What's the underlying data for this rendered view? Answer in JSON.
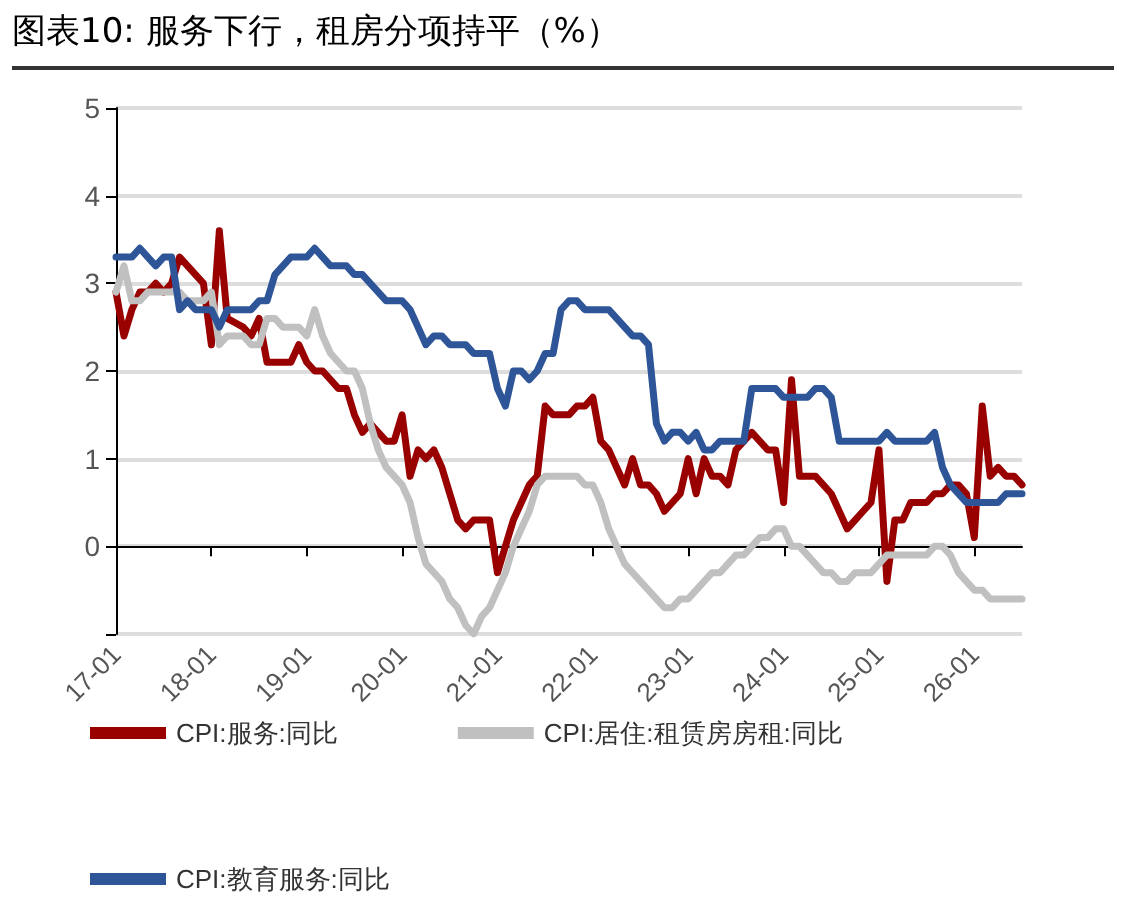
{
  "chart_data": {
    "type": "line",
    "title": "图表10: 服务下行，租房分项持平（%）",
    "categories": [
      "17-01",
      null,
      null,
      null,
      null,
      null,
      null,
      null,
      null,
      null,
      null,
      null,
      "18-01",
      null,
      null,
      null,
      null,
      null,
      null,
      null,
      null,
      null,
      null,
      null,
      "19-01",
      null,
      null,
      null,
      null,
      null,
      null,
      null,
      null,
      null,
      null,
      null,
      "20-01",
      null,
      null,
      null,
      null,
      null,
      null,
      null,
      null,
      null,
      null,
      null,
      "21-01",
      null,
      null,
      null,
      null,
      null,
      null,
      null,
      null,
      null,
      null,
      null,
      "22-01",
      null,
      null,
      null,
      null,
      null,
      null,
      null,
      null,
      null,
      null,
      null,
      "23-01",
      null,
      null,
      null,
      null,
      null,
      null,
      null,
      null,
      null,
      null,
      null,
      "24-01",
      null,
      null,
      null,
      null,
      null,
      null,
      null,
      null,
      null,
      null,
      null,
      "25-01",
      null,
      null,
      null,
      null,
      null,
      null,
      null,
      null,
      null,
      null,
      null,
      "26-01",
      null,
      null,
      null,
      null,
      null,
      null
    ],
    "series": [
      {
        "name": "CPI:服务:同比",
        "color": "#990000",
        "values": [
          2.9,
          2.4,
          2.7,
          2.9,
          2.9,
          3.0,
          2.9,
          3.0,
          3.3,
          3.2,
          3.1,
          3.0,
          2.3,
          3.6,
          2.6,
          2.55,
          2.5,
          2.4,
          2.6,
          2.1,
          2.1,
          2.1,
          2.1,
          2.3,
          2.1,
          2.0,
          2.0,
          1.9,
          1.8,
          1.8,
          1.5,
          1.3,
          1.4,
          1.3,
          1.2,
          1.2,
          1.5,
          0.8,
          1.1,
          1.0,
          1.1,
          0.9,
          0.6,
          0.3,
          0.2,
          0.3,
          0.3,
          0.3,
          -0.3,
          0.0,
          0.3,
          0.5,
          0.7,
          0.8,
          1.6,
          1.5,
          1.5,
          1.5,
          1.6,
          1.6,
          1.7,
          1.2,
          1.1,
          0.9,
          0.7,
          1.0,
          0.7,
          0.7,
          0.6,
          0.4,
          0.5,
          0.6,
          1.0,
          0.6,
          1.0,
          0.8,
          0.8,
          0.7,
          1.1,
          1.2,
          1.3,
          1.2,
          1.1,
          1.1,
          0.5,
          1.9,
          0.8,
          0.8,
          0.8,
          0.7,
          0.6,
          0.4,
          0.2,
          0.3,
          0.4,
          0.5,
          1.1,
          -0.4,
          0.3,
          0.3,
          0.5,
          0.5,
          0.5,
          0.6,
          0.6,
          0.7,
          0.7,
          0.6,
          0.1,
          1.6,
          0.8,
          0.9,
          0.8,
          0.8,
          0.7
        ]
      },
      {
        "name": "CPI:居住:租赁房房租:同比",
        "color": "#c0c0c0",
        "values": [
          2.9,
          3.2,
          2.8,
          2.8,
          2.9,
          2.9,
          2.9,
          2.9,
          2.9,
          2.8,
          2.8,
          2.8,
          2.9,
          2.3,
          2.4,
          2.4,
          2.4,
          2.3,
          2.3,
          2.6,
          2.6,
          2.5,
          2.5,
          2.5,
          2.4,
          2.7,
          2.4,
          2.2,
          2.1,
          2.0,
          2.0,
          1.8,
          1.4,
          1.1,
          0.9,
          0.8,
          0.7,
          0.5,
          0.1,
          -0.2,
          -0.3,
          -0.4,
          -0.6,
          -0.7,
          -0.9,
          -1.0,
          -0.8,
          -0.7,
          -0.5,
          -0.3,
          0.0,
          0.2,
          0.4,
          0.7,
          0.8,
          0.8,
          0.8,
          0.8,
          0.8,
          0.7,
          0.7,
          0.5,
          0.2,
          0.0,
          -0.2,
          -0.3,
          -0.4,
          -0.5,
          -0.6,
          -0.7,
          -0.7,
          -0.6,
          -0.6,
          -0.5,
          -0.4,
          -0.3,
          -0.3,
          -0.2,
          -0.1,
          -0.1,
          0.0,
          0.1,
          0.1,
          0.2,
          0.2,
          0.0,
          0.0,
          -0.1,
          -0.2,
          -0.3,
          -0.3,
          -0.4,
          -0.4,
          -0.3,
          -0.3,
          -0.3,
          -0.2,
          -0.1,
          -0.1,
          -0.1,
          -0.1,
          -0.1,
          -0.1,
          0.0,
          0.0,
          -0.1,
          -0.3,
          -0.4,
          -0.5,
          -0.5,
          -0.6,
          -0.6,
          -0.6,
          -0.6,
          -0.6
        ]
      },
      {
        "name": "CPI:教育服务:同比",
        "color": "#2e5597",
        "values": [
          3.3,
          3.3,
          3.3,
          3.4,
          3.3,
          3.2,
          3.3,
          3.3,
          2.7,
          2.8,
          2.7,
          2.7,
          2.7,
          2.5,
          2.7,
          2.7,
          2.7,
          2.7,
          2.8,
          2.8,
          3.1,
          3.2,
          3.3,
          3.3,
          3.3,
          3.4,
          3.3,
          3.2,
          3.2,
          3.2,
          3.1,
          3.1,
          3.0,
          2.9,
          2.8,
          2.8,
          2.8,
          2.7,
          2.5,
          2.3,
          2.4,
          2.4,
          2.3,
          2.3,
          2.3,
          2.2,
          2.2,
          2.2,
          1.8,
          1.6,
          2.0,
          2.0,
          1.9,
          2.0,
          2.2,
          2.2,
          2.7,
          2.8,
          2.8,
          2.7,
          2.7,
          2.7,
          2.7,
          2.6,
          2.5,
          2.4,
          2.4,
          2.3,
          1.4,
          1.2,
          1.3,
          1.3,
          1.2,
          1.3,
          1.1,
          1.1,
          1.2,
          1.2,
          1.2,
          1.2,
          1.8,
          1.8,
          1.8,
          1.8,
          1.7,
          1.7,
          1.7,
          1.7,
          1.8,
          1.8,
          1.7,
          1.2,
          1.2,
          1.2,
          1.2,
          1.2,
          1.2,
          1.3,
          1.2,
          1.2,
          1.2,
          1.2,
          1.2,
          1.3,
          0.9,
          0.7,
          0.6,
          0.5,
          0.5,
          0.5,
          0.5,
          0.5,
          0.6,
          0.6,
          0.6
        ]
      }
    ],
    "ylim": [
      -1,
      5
    ],
    "yticks": [
      {
        "value": -1,
        "label": null
      },
      0,
      1,
      2,
      3,
      4,
      5
    ],
    "grid": "y",
    "legend": "bottom",
    "marker": "none",
    "line_style": "solid"
  }
}
